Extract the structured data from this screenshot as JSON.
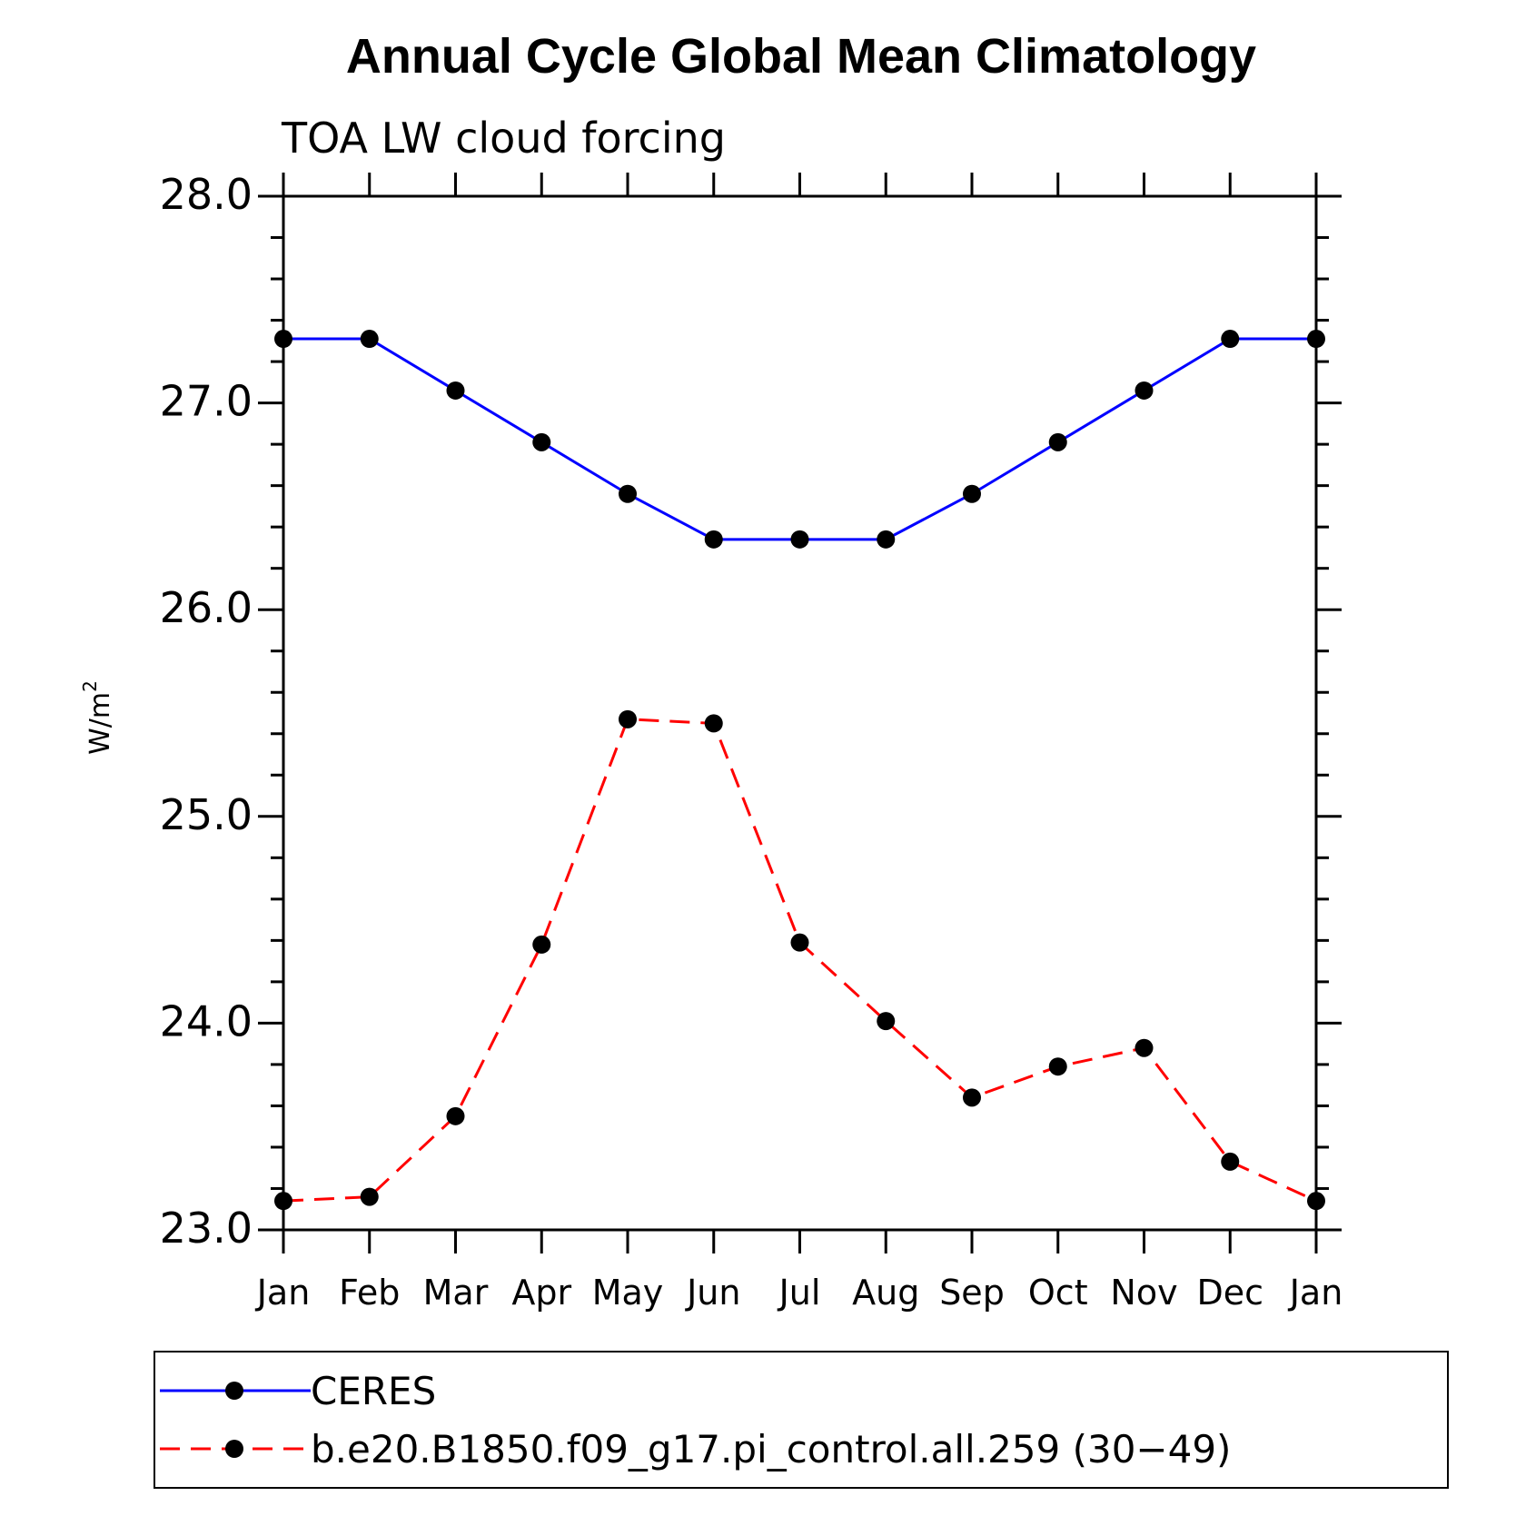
{
  "chart_data": {
    "type": "line",
    "title": "Annual Cycle Global Mean Climatology",
    "subtitle": "TOA LW cloud forcing",
    "ylabel": "W/m",
    "ylabel_sup": "2",
    "xlabel": "",
    "ylim": [
      23.0,
      28.0
    ],
    "y_ticks": [
      "23.0",
      "24.0",
      "25.0",
      "26.0",
      "27.0",
      "28.0"
    ],
    "categories": [
      "Jan",
      "Feb",
      "Mar",
      "Apr",
      "May",
      "Jun",
      "Jul",
      "Aug",
      "Sep",
      "Oct",
      "Nov",
      "Dec",
      "Jan"
    ],
    "grid": false,
    "legend_position": "bottom",
    "series": [
      {
        "name": "CERES",
        "color": "#0000ff",
        "dash": "solid",
        "marker": "filled-circle",
        "values": [
          27.31,
          27.31,
          27.06,
          26.81,
          26.56,
          26.34,
          26.34,
          26.34,
          26.56,
          26.81,
          27.06,
          27.31,
          27.31
        ]
      },
      {
        "name": "b.e20.B1850.f09_g17.pi_control.all.259 (30−49)",
        "color": "#ff0000",
        "dash": "dashed",
        "marker": "filled-circle",
        "values": [
          23.14,
          23.16,
          23.55,
          24.38,
          25.47,
          25.45,
          24.39,
          24.01,
          23.64,
          23.79,
          23.88,
          23.33,
          23.14
        ]
      }
    ]
  }
}
